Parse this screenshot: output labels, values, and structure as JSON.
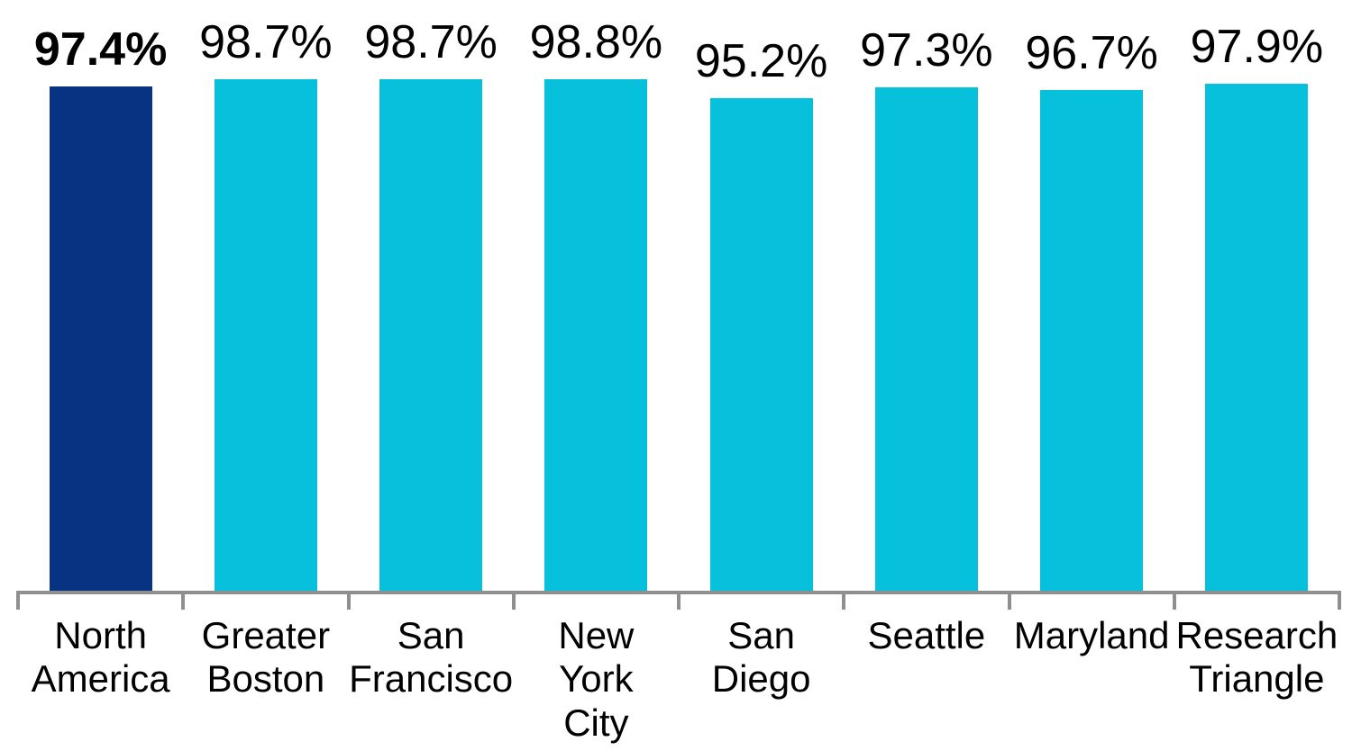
{
  "chart_data": {
    "type": "bar",
    "title": "",
    "categories": [
      "North America",
      "Greater Boston",
      "San Francisco",
      "New York City",
      "San Diego",
      "Seattle",
      "Maryland",
      "Research Triangle"
    ],
    "category_lines": [
      [
        "North",
        "America"
      ],
      [
        "Greater",
        "Boston"
      ],
      [
        "San",
        "Francisco"
      ],
      [
        "New",
        "York",
        "City"
      ],
      [
        "San",
        "Diego"
      ],
      [
        "Seattle"
      ],
      [
        "Maryland"
      ],
      [
        "Research",
        "Triangle"
      ]
    ],
    "values": [
      97.4,
      98.7,
      98.7,
      98.8,
      95.2,
      97.3,
      96.7,
      97.9
    ],
    "value_labels": [
      "97.4%",
      "98.7%",
      "98.7%",
      "98.8%",
      "95.2%",
      "97.3%",
      "96.7%",
      "97.9%"
    ],
    "emphasized_index": 0,
    "ylim": [
      0,
      100
    ],
    "grid": false,
    "legend_position": "none",
    "colors": {
      "bar_default": "#07C0DB",
      "bar_emphasis": "#083383",
      "axis": "#8F8F8F",
      "text": "#000000"
    }
  }
}
